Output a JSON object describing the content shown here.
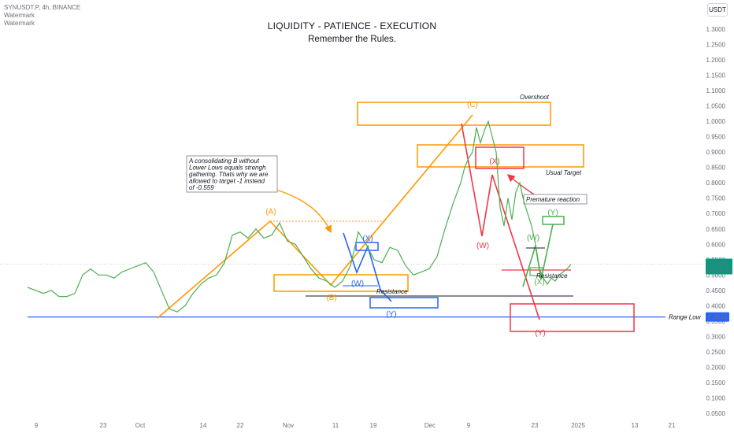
{
  "header": {
    "symbol_line": "SYNUSDT.P, 4h, BINANCE",
    "watermark1": "Watermark",
    "watermark2": "Watermark",
    "currency": "USDT"
  },
  "titles": {
    "line1": "LIQUIDITY - PATIENCE - EXECUTION",
    "line2": "Remember the Rules."
  },
  "chart_data": {
    "type": "line",
    "y_ticks": [
      "1.3000",
      "1.2500",
      "1.2000",
      "1.1500",
      "1.1000",
      "1.0500",
      "1.0000",
      "0.9500",
      "0.9000",
      "0.8500",
      "0.8000",
      "0.7500",
      "0.7000",
      "0.6500",
      "0.6000",
      "0.5500",
      "0.5000",
      "0.4500",
      "0.4000",
      "0.3500",
      "0.3000",
      "0.2500",
      "0.2000",
      "0.1500",
      "0.1000",
      "0.0500"
    ],
    "x_ticks": [
      "9",
      "23",
      "Oct",
      "14",
      "22",
      "Nov",
      "11",
      "19",
      "Dec",
      "9",
      "23",
      "2025",
      "13",
      "21"
    ],
    "ylim": [
      0.03,
      1.36
    ],
    "x": [
      0,
      10,
      20,
      30,
      40,
      50,
      60,
      70,
      80,
      90,
      100,
      110,
      120,
      130,
      140,
      150,
      160,
      170,
      180,
      190,
      200,
      210,
      220,
      230,
      240,
      250,
      260,
      270,
      280,
      290,
      300,
      310,
      320,
      330,
      340,
      350,
      360,
      370,
      380,
      390,
      400,
      410,
      420,
      430,
      440,
      450,
      460,
      470,
      480,
      490,
      500,
      510,
      520,
      530,
      540,
      550,
      555,
      560,
      565,
      570,
      575,
      580,
      585,
      590,
      595,
      600,
      605,
      610,
      615,
      620,
      625,
      630,
      635,
      640,
      645,
      650,
      655,
      660,
      665,
      670,
      675,
      680,
      685,
      690
    ],
    "price": [
      0.46,
      0.45,
      0.44,
      0.45,
      0.43,
      0.43,
      0.44,
      0.5,
      0.52,
      0.5,
      0.5,
      0.49,
      0.51,
      0.52,
      0.53,
      0.54,
      0.51,
      0.45,
      0.39,
      0.38,
      0.4,
      0.44,
      0.47,
      0.49,
      0.5,
      0.54,
      0.63,
      0.64,
      0.62,
      0.65,
      0.62,
      0.63,
      0.67,
      0.61,
      0.6,
      0.56,
      0.52,
      0.49,
      0.48,
      0.46,
      0.48,
      0.53,
      0.64,
      0.6,
      0.55,
      0.54,
      0.59,
      0.58,
      0.53,
      0.5,
      0.51,
      0.52,
      0.56,
      0.65,
      0.73,
      0.8,
      0.85,
      0.88,
      0.9,
      0.98,
      0.93,
      0.97,
      1.0,
      0.95,
      0.9,
      0.72,
      0.66,
      0.75,
      0.68,
      0.77,
      0.8,
      0.74,
      0.7,
      0.66,
      0.6,
      0.52,
      0.49,
      0.47,
      0.49,
      0.48,
      0.5,
      0.51,
      0.52,
      0.535
    ],
    "current_price": "0.5354",
    "countdown": "03:29:11",
    "range_low_value": "0.3635",
    "range_low_label": "Range Low",
    "elliott_labels": {
      "A": "(A)",
      "B": "(B)",
      "C": "(C)",
      "bw_X": "(X)",
      "bw_W": "(W)",
      "bw_Y": "(Y)",
      "rd_X": "(X)",
      "rd_W": "(W)",
      "rd_Y": "(Y)",
      "gr_W": "(W)",
      "gr_X": "(X)",
      "gr_Y": "(Y)"
    },
    "annotations": {
      "overshoot": "Overshoot",
      "usual_target": "Usual Target",
      "premature": "Premature reaction",
      "resistance1": "Resistance",
      "resistance2": "Resistance",
      "note_lines": [
        "A consolidating B without",
        "Lower Lows equals strengh",
        "gathering. Thats why we are",
        "allowed to target -1 instead",
        "of -0.559"
      ]
    },
    "colors": {
      "price": "#4caf50",
      "orange": "#ff9800",
      "blue": "#2962ff",
      "red": "#f23645",
      "green": "#4caf50",
      "range_line": "#2962ff"
    }
  }
}
